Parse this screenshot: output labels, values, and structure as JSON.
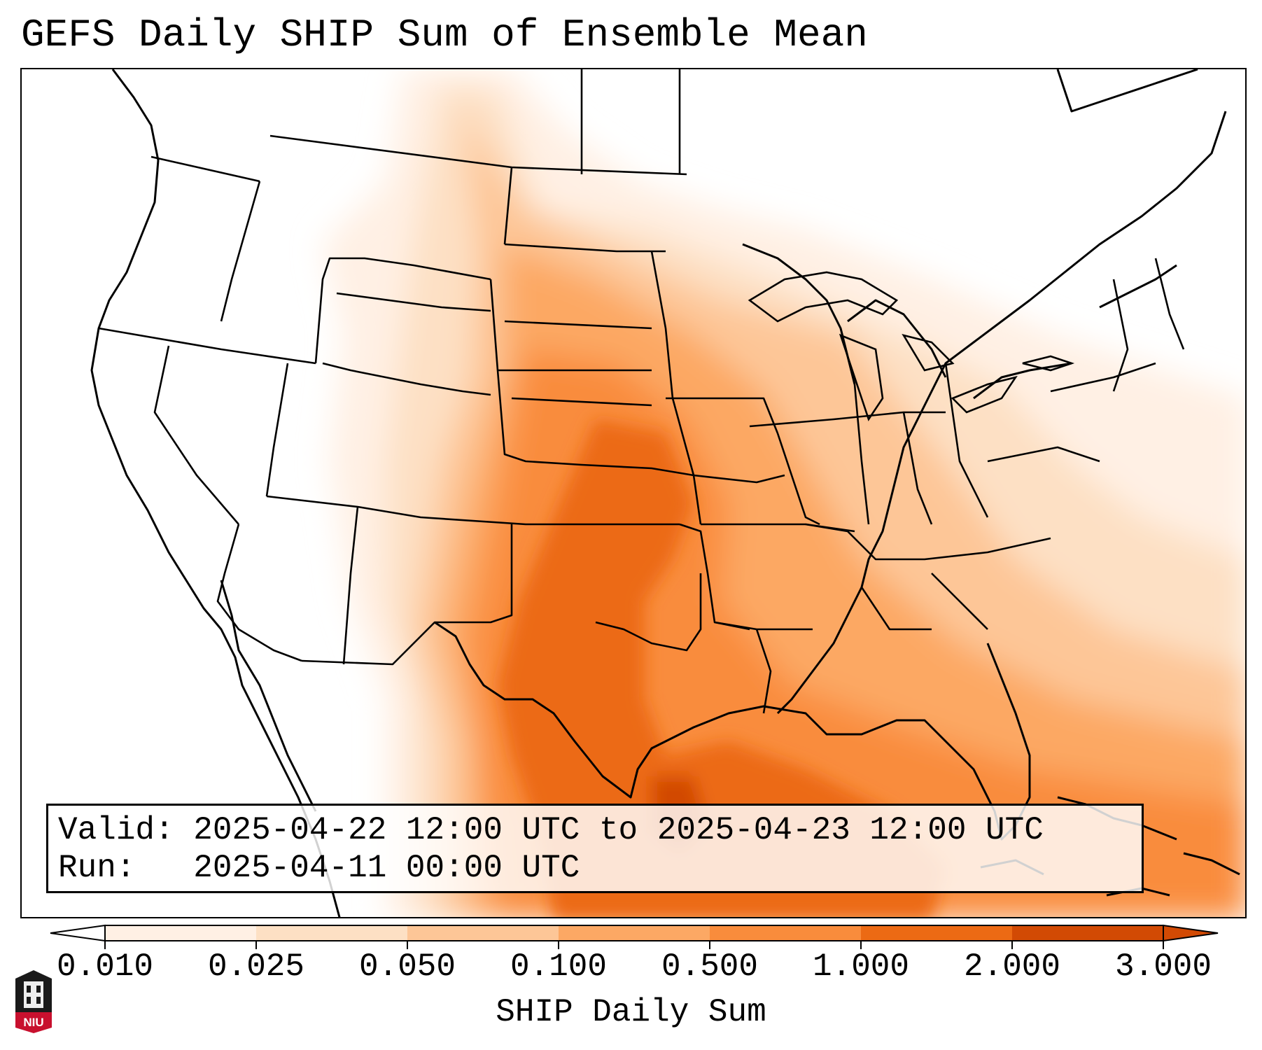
{
  "title": "GEFS Daily SHIP Sum of Ensemble Mean",
  "info": {
    "valid_label": "Valid:",
    "valid_value": "2025-04-22 12:00 UTC to 2025-04-23 12:00 UTC",
    "run_label": "Run:",
    "run_value": "2025-04-11 00:00 UTC"
  },
  "colorbar": {
    "label": "SHIP Daily Sum",
    "levels": [
      "0.010",
      "0.025",
      "0.050",
      "0.100",
      "0.500",
      "1.000",
      "2.000",
      "3.000"
    ],
    "colors": [
      "#fff0e4",
      "#fde0c4",
      "#fdc697",
      "#fca864",
      "#f98c3c",
      "#ec6a14",
      "#d24a04"
    ],
    "extend": "both"
  },
  "legend_logo": {
    "text": "NIU",
    "icon": "niu-logo-icon",
    "color": "#c8102e"
  },
  "map_meta": {
    "region": "Contiguous United States",
    "field": "SHIP Daily Sum",
    "highlighted_max_region": "Southern Plains and western Gulf of Mexico"
  }
}
